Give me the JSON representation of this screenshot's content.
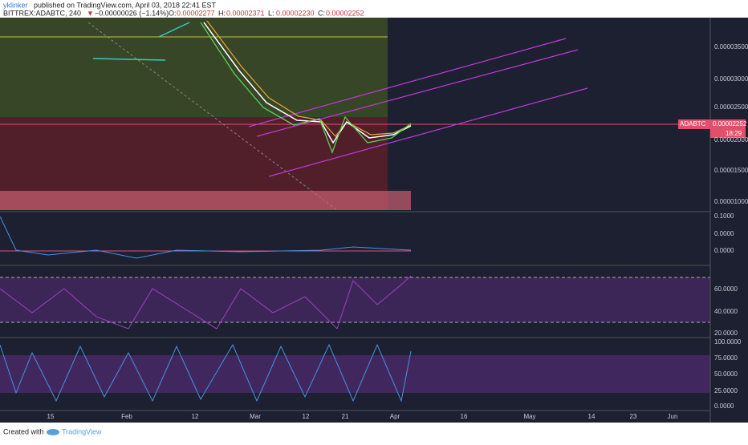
{
  "header": {
    "author": "yklinker",
    "published": "published on TradingView.com, April 03, 2018 22:41 EST",
    "symbol": "BITTREX:ADABTC, 240",
    "arrow": "▼",
    "change": "−0.00000026 (−1.14%)",
    "ohlc": [
      {
        "key": "O:",
        "value": "0.00002277"
      },
      {
        "key": "H:",
        "value": "0.00002371"
      },
      {
        "key": "L:",
        "value": "0.00002230"
      },
      {
        "key": "C:",
        "value": "0.00002252"
      }
    ]
  },
  "price_axis": {
    "labels": [
      "0.00003500",
      "0.00003000",
      "0.00002500",
      "0.00002000",
      "0.00001500",
      "0.00001000"
    ],
    "tag_symbol": "ADABTC",
    "tag_price": "0.00002252",
    "tag_time": "18:29"
  },
  "macd_axis": {
    "labels": [
      "0.1000",
      "0.0000",
      "0.0000"
    ]
  },
  "rsi_axis": {
    "labels": [
      "60.0000",
      "40.0000",
      "20.0000"
    ]
  },
  "stoch_axis": {
    "labels": [
      "100.0000",
      "75.0000",
      "50.0000",
      "25.0000",
      "0.0000"
    ]
  },
  "time_axis": {
    "labels": [
      "15",
      "Feb",
      "12",
      "Mar",
      "12",
      "21",
      "Apr",
      "16",
      "May",
      "14",
      "23",
      "Jun"
    ]
  },
  "footer": {
    "created": "Created with",
    "brand": "TradingView"
  }
}
